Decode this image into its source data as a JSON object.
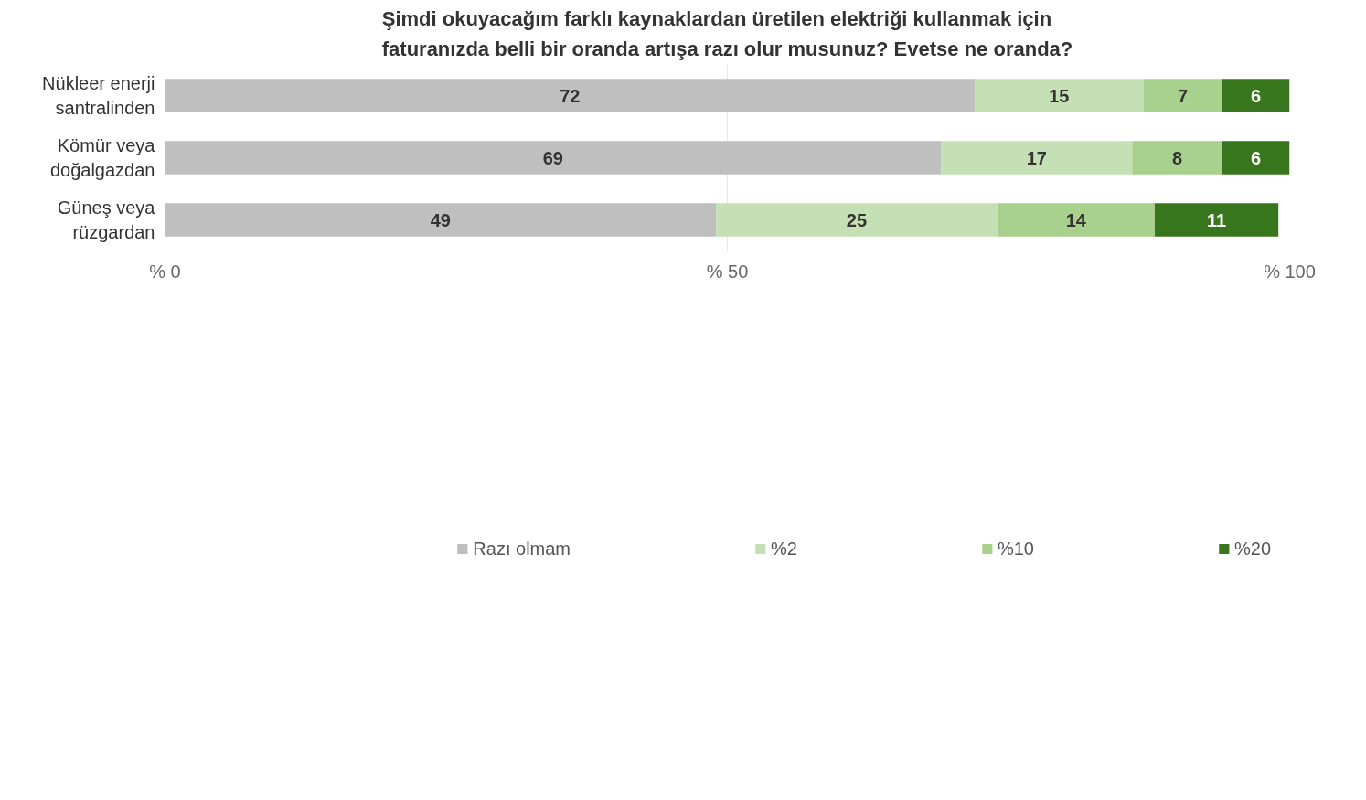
{
  "chart_data": {
    "type": "bar",
    "orientation": "horizontal",
    "stacked": true,
    "title": "Şimdi okuyacağım farklı kaynaklardan üretilen elektriği kullanmak için faturanızda belli bir oranda artışa razı olur musunuz? Evetse ne oranda?",
    "categories": [
      "Nükleer enerji santralinden",
      "Kömür veya doğalgazdan",
      "Güneş veya rüzgardan"
    ],
    "series": [
      {
        "name": "Razı olmam",
        "color": "#bfbfbf",
        "values": [
          72,
          69,
          49
        ]
      },
      {
        "name": "%2",
        "color": "#c5e0b4",
        "values": [
          15,
          17,
          25
        ]
      },
      {
        "name": "%10",
        "color": "#a9d18e",
        "values": [
          7,
          8,
          14
        ]
      },
      {
        "name": "%20",
        "color": "#38761d",
        "values": [
          6,
          6,
          11
        ]
      }
    ],
    "xlim": [
      0,
      100
    ],
    "xticks": [
      {
        "value": 0,
        "label": "% 0"
      },
      {
        "value": 50,
        "label": "% 50"
      },
      {
        "value": 100,
        "label": "% 100"
      }
    ],
    "grid": "x",
    "legend": "bottom",
    "data_labels": true
  }
}
